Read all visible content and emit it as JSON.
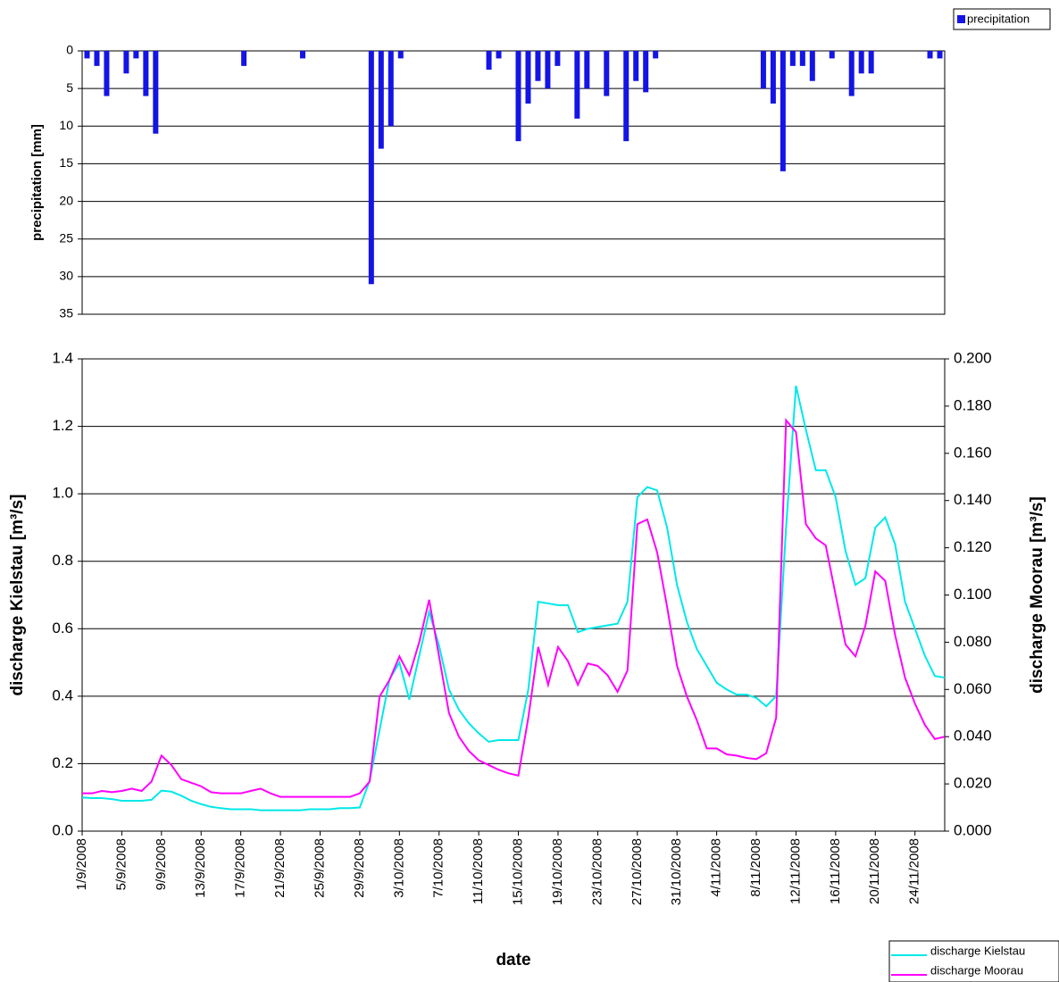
{
  "chart_data": [
    {
      "type": "bar",
      "ylabel": "precipitation [mm]",
      "ylim": [
        0,
        35
      ],
      "yticks": [
        0,
        5,
        10,
        15,
        20,
        25,
        30,
        35
      ],
      "y_inverted": true,
      "grid": true,
      "legend": "top-right",
      "series": [
        {
          "name": "precipitation",
          "color": "#1414e6",
          "values": [
            1,
            2,
            6,
            null,
            3,
            1,
            6,
            11,
            null,
            null,
            null,
            null,
            null,
            null,
            null,
            null,
            2,
            null,
            null,
            null,
            null,
            null,
            1,
            null,
            null,
            null,
            null,
            null,
            null,
            31,
            13,
            10,
            1,
            null,
            null,
            null,
            null,
            null,
            null,
            null,
            null,
            2.5,
            1,
            null,
            12,
            7,
            4,
            5,
            2,
            null,
            9,
            5,
            null,
            6,
            null,
            12,
            4,
            5.5,
            1,
            null,
            null,
            null,
            null,
            null,
            null,
            null,
            null,
            null,
            null,
            5,
            7,
            16,
            2,
            2,
            4,
            null,
            1,
            null,
            6,
            3,
            3,
            null,
            null,
            null,
            null,
            null,
            1,
            1
          ]
        }
      ]
    },
    {
      "type": "line",
      "xlabel": "date",
      "ylabel": "discharge Kielstau [m³/s]",
      "y2label": "discharge Moorau [m³/s]",
      "grid": true,
      "legend": "bottom-right",
      "categories": [
        "1/9/2008",
        null,
        null,
        null,
        "5/9/2008",
        null,
        null,
        null,
        "9/9/2008",
        null,
        null,
        null,
        "13/9/2008",
        null,
        null,
        null,
        "17/9/2008",
        null,
        null,
        null,
        "21/9/2008",
        null,
        null,
        null,
        "25/9/2008",
        null,
        null,
        null,
        "29/9/2008",
        null,
        null,
        null,
        "3/10/2008",
        null,
        null,
        null,
        "7/10/2008",
        null,
        null,
        null,
        "11/10/2008",
        null,
        null,
        null,
        "15/10/2008",
        null,
        null,
        null,
        "19/10/2008",
        null,
        null,
        null,
        "23/10/2008",
        null,
        null,
        null,
        "27/10/2008",
        null,
        null,
        null,
        "31/10/2008",
        null,
        null,
        null,
        "4/11/2008",
        null,
        null,
        null,
        "8/11/2008",
        null,
        null,
        null,
        "12/11/2008",
        null,
        null,
        null,
        "16/11/2008",
        null,
        null,
        null,
        "20/11/2008",
        null,
        null,
        null,
        "24/11/2008",
        null,
        null,
        null
      ],
      "ylim": [
        0,
        1.4
      ],
      "yticks": [
        {
          "value": 0,
          "label": "0.0"
        },
        0.2,
        0.4,
        0.6,
        0.8,
        {
          "value": 1,
          "label": "1.0"
        },
        1.2,
        1.4
      ],
      "y2lim": [
        0,
        0.2
      ],
      "y2ticks": [
        {
          "value": 0,
          "label": "0.000"
        },
        {
          "value": 0.02,
          "label": "0.020"
        },
        {
          "value": 0.04,
          "label": "0.040"
        },
        {
          "value": 0.06,
          "label": "0.060"
        },
        {
          "value": 0.08,
          "label": "0.080"
        },
        {
          "value": 0.1,
          "label": "0.100"
        },
        {
          "value": 0.12,
          "label": "0.120"
        },
        {
          "value": 0.14,
          "label": "0.140"
        },
        {
          "value": 0.16,
          "label": "0.160"
        },
        {
          "value": 0.18,
          "label": "0.180"
        },
        {
          "value": 0.2,
          "label": "0.200"
        }
      ],
      "series": [
        {
          "name": "discharge Kielstau",
          "color": "#00e8e8",
          "values": [
            0.1,
            0.098,
            0.098,
            0.095,
            0.09,
            0.09,
            0.09,
            0.093,
            0.12,
            0.117,
            0.105,
            0.09,
            0.08,
            0.072,
            0.068,
            0.065,
            0.065,
            0.065,
            0.062,
            0.062,
            0.062,
            0.062,
            0.062,
            0.065,
            0.065,
            0.065,
            0.068,
            0.068,
            0.07,
            0.15,
            0.3,
            0.45,
            0.5,
            0.39,
            0.52,
            0.65,
            0.55,
            0.42,
            0.36,
            0.32,
            0.29,
            0.265,
            0.27,
            0.27,
            0.27,
            0.42,
            0.68,
            0.675,
            0.67,
            0.67,
            0.59,
            0.6,
            0.605,
            0.61,
            0.615,
            0.68,
            0.99,
            1.02,
            1.01,
            0.9,
            0.73,
            0.62,
            0.54,
            0.49,
            0.44,
            0.42,
            0.405,
            0.405,
            0.395,
            0.37,
            0.4,
            0.9,
            1.32,
            1.19,
            1.07,
            1.07,
            0.99,
            0.83,
            0.73,
            0.75,
            0.9,
            0.93,
            0.85,
            0.68,
            0.6,
            0.52,
            0.46,
            0.455
          ]
        },
        {
          "name": "discharge Moorau",
          "color": "#ff00ff",
          "axis": "y2",
          "values": [
            0.016,
            0.016,
            0.017,
            0.0165,
            0.017,
            0.018,
            0.017,
            0.021,
            0.032,
            0.028,
            0.022,
            0.0205,
            0.019,
            0.0165,
            0.016,
            0.016,
            0.016,
            0.017,
            0.018,
            0.016,
            0.0145,
            0.0145,
            0.0145,
            0.0145,
            0.0145,
            0.0145,
            0.0145,
            0.0145,
            0.016,
            0.021,
            0.057,
            0.064,
            0.074,
            0.066,
            0.08,
            0.098,
            0.074,
            0.05,
            0.04,
            0.034,
            0.03,
            0.028,
            0.026,
            0.0245,
            0.0235,
            0.048,
            0.078,
            0.062,
            0.078,
            0.072,
            0.062,
            0.071,
            0.07,
            0.066,
            0.059,
            0.068,
            0.13,
            0.132,
            0.118,
            0.095,
            0.07,
            0.057,
            0.047,
            0.035,
            0.035,
            0.0325,
            0.032,
            0.031,
            0.0305,
            0.033,
            0.048,
            0.174,
            0.169,
            0.13,
            0.124,
            0.121,
            0.1,
            0.079,
            0.074,
            0.087,
            0.11,
            0.106,
            0.083,
            0.065,
            0.054,
            0.045,
            0.039,
            0.04
          ]
        }
      ]
    }
  ]
}
